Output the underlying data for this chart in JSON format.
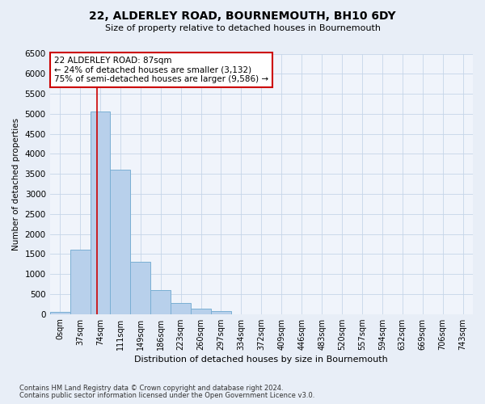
{
  "title": "22, ALDERLEY ROAD, BOURNEMOUTH, BH10 6DY",
  "subtitle": "Size of property relative to detached houses in Bournemouth",
  "xlabel": "Distribution of detached houses by size in Bournemouth",
  "ylabel": "Number of detached properties",
  "bar_labels": [
    "0sqm",
    "37sqm",
    "74sqm",
    "111sqm",
    "149sqm",
    "186sqm",
    "223sqm",
    "260sqm",
    "297sqm",
    "334sqm",
    "372sqm",
    "409sqm",
    "446sqm",
    "483sqm",
    "520sqm",
    "557sqm",
    "594sqm",
    "632sqm",
    "669sqm",
    "706sqm",
    "743sqm"
  ],
  "bar_values": [
    60,
    1600,
    5050,
    3600,
    1300,
    590,
    280,
    130,
    70,
    0,
    0,
    0,
    0,
    0,
    0,
    0,
    0,
    0,
    0,
    0,
    0
  ],
  "bar_color": "#b8d0eb",
  "bar_edge_color": "#7aafd4",
  "vline_x_idx": 2,
  "vline_color": "#cc0000",
  "annotation_line1": "22 ALDERLEY ROAD: 87sqm",
  "annotation_line2": "← 24% of detached houses are smaller (3,132)",
  "annotation_line3": "75% of semi-detached houses are larger (9,586) →",
  "annotation_box_color": "#ffffff",
  "annotation_box_edge": "#cc0000",
  "ylim": [
    0,
    6500
  ],
  "yticks": [
    0,
    500,
    1000,
    1500,
    2000,
    2500,
    3000,
    3500,
    4000,
    4500,
    5000,
    5500,
    6000,
    6500
  ],
  "footnote1": "Contains HM Land Registry data © Crown copyright and database right 2024.",
  "footnote2": "Contains public sector information licensed under the Open Government Licence v3.0.",
  "bg_color": "#e8eef7",
  "plot_bg_color": "#f0f4fb"
}
